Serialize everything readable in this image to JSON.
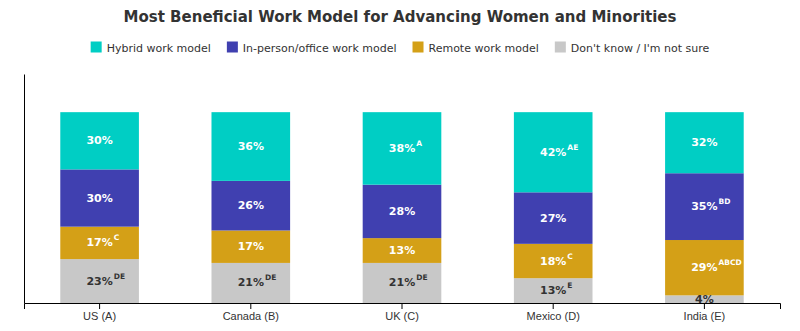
{
  "chart_data": {
    "type": "bar",
    "stacked": true,
    "title": "Most Beneficial Work Model for Advancing Women and Minorities",
    "categories": [
      "US (A)",
      "Canada (B)",
      "UK (C)",
      "Mexico (D)",
      "India (E)"
    ],
    "series": [
      {
        "name": "Hybrid work model",
        "color": "#00CEC4",
        "values": [
          30,
          36,
          38,
          42,
          32
        ],
        "value_labels": [
          "30%",
          "36%",
          "38%",
          "42%",
          "32%"
        ],
        "superscripts": [
          null,
          null,
          "A",
          "AE",
          null
        ]
      },
      {
        "name": "In-person/office work model",
        "color": "#4040B0",
        "values": [
          30,
          26,
          28,
          27,
          35
        ],
        "value_labels": [
          "30%",
          "26%",
          "28%",
          "27%",
          "35%"
        ],
        "superscripts": [
          null,
          null,
          null,
          null,
          "BD"
        ]
      },
      {
        "name": "Remote work model",
        "color": "#D4A017",
        "values": [
          17,
          17,
          13,
          18,
          29
        ],
        "value_labels": [
          "17%",
          "17%",
          "13%",
          "18%",
          "29%"
        ],
        "superscripts": [
          "C",
          null,
          null,
          "C",
          "ABCD"
        ]
      },
      {
        "name": "Don't know / I'm not sure",
        "color": "#C8C8C8",
        "values": [
          23,
          21,
          21,
          13,
          4
        ],
        "value_labels": [
          "23%",
          "21%",
          "21%",
          "13%",
          "4%"
        ],
        "superscripts": [
          "DE",
          "DE",
          "DE",
          "E",
          null
        ]
      }
    ],
    "ylim": [
      0,
      120
    ],
    "data_labels": true,
    "tick_labels": "x",
    "grid": false,
    "legend": "top"
  }
}
